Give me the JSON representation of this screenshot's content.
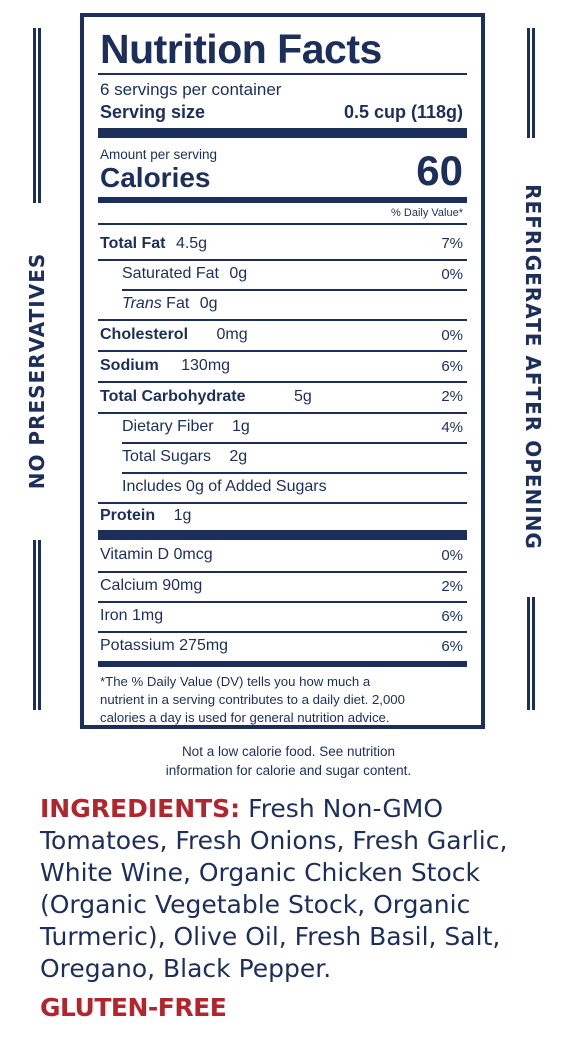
{
  "side": {
    "left_text": "NO PRESERVATIVES",
    "right_text": "REFRIGERATE AFTER OPENING"
  },
  "label": {
    "title": "Nutrition Facts",
    "servings": "6 servings per container",
    "serving_size_label": "Serving size",
    "serving_size_value": "0.5 cup (118g)",
    "amount_per_serving": "Amount per serving",
    "calories_label": "Calories",
    "calories_value": "60",
    "daily_value_header": "% Daily Value*",
    "nutrients": [
      {
        "name": "Total Fat",
        "amount": "4.5g",
        "dv": "7%"
      },
      {
        "name": "Saturated Fat",
        "amount": "0g",
        "dv": "0%"
      },
      {
        "name_italic": "Trans",
        "name": "Fat",
        "amount": "0g",
        "dv": ""
      },
      {
        "name": "Cholesterol",
        "amount": "0mg",
        "dv": "0%"
      },
      {
        "name": "Sodium",
        "amount": "130mg",
        "dv": "6%"
      },
      {
        "name": "Total Carbohydrate",
        "amount": "5g",
        "dv": "2%"
      },
      {
        "name": "Dietary Fiber",
        "amount": "1g",
        "dv": "4%"
      },
      {
        "name": "Total Sugars",
        "amount": "2g",
        "dv": ""
      },
      {
        "name": "Includes 0g of Added Sugars",
        "amount": "",
        "dv": ""
      },
      {
        "name": "Protein",
        "amount": "1g",
        "dv": ""
      }
    ],
    "vitamins": [
      {
        "name": "Vitamin D 0mcg",
        "dv": "0%"
      },
      {
        "name": "Calcium 90mg",
        "dv": "2%"
      },
      {
        "name": "Iron 1mg",
        "dv": "6%"
      },
      {
        "name": "Potassium 275mg",
        "dv": "6%"
      }
    ],
    "footnote": [
      "*The % Daily Value (DV) tells you how much a",
      "nutrient in a serving contributes to a daily diet. 2,000",
      "calories a day is used for general nutrition advice."
    ]
  },
  "note": [
    "Not a low calorie food. See nutrition",
    "information for calorie and sugar content."
  ],
  "ingredients": {
    "heading": "INGREDIENTS:",
    "text": "Fresh Non-GMO Tomatoes, Fresh Onions, Fresh Garlic, White Wine, Organic Chicken Stock (Organic Vegetable Stock, Organic Turmeric), Olive Oil, Fresh Basil, Salt, Oregano, Black Pepper."
  },
  "gluten_free": "GLUTEN-FREE",
  "colors": {
    "navy": "#1c2f5a",
    "red": "#b3252d"
  }
}
